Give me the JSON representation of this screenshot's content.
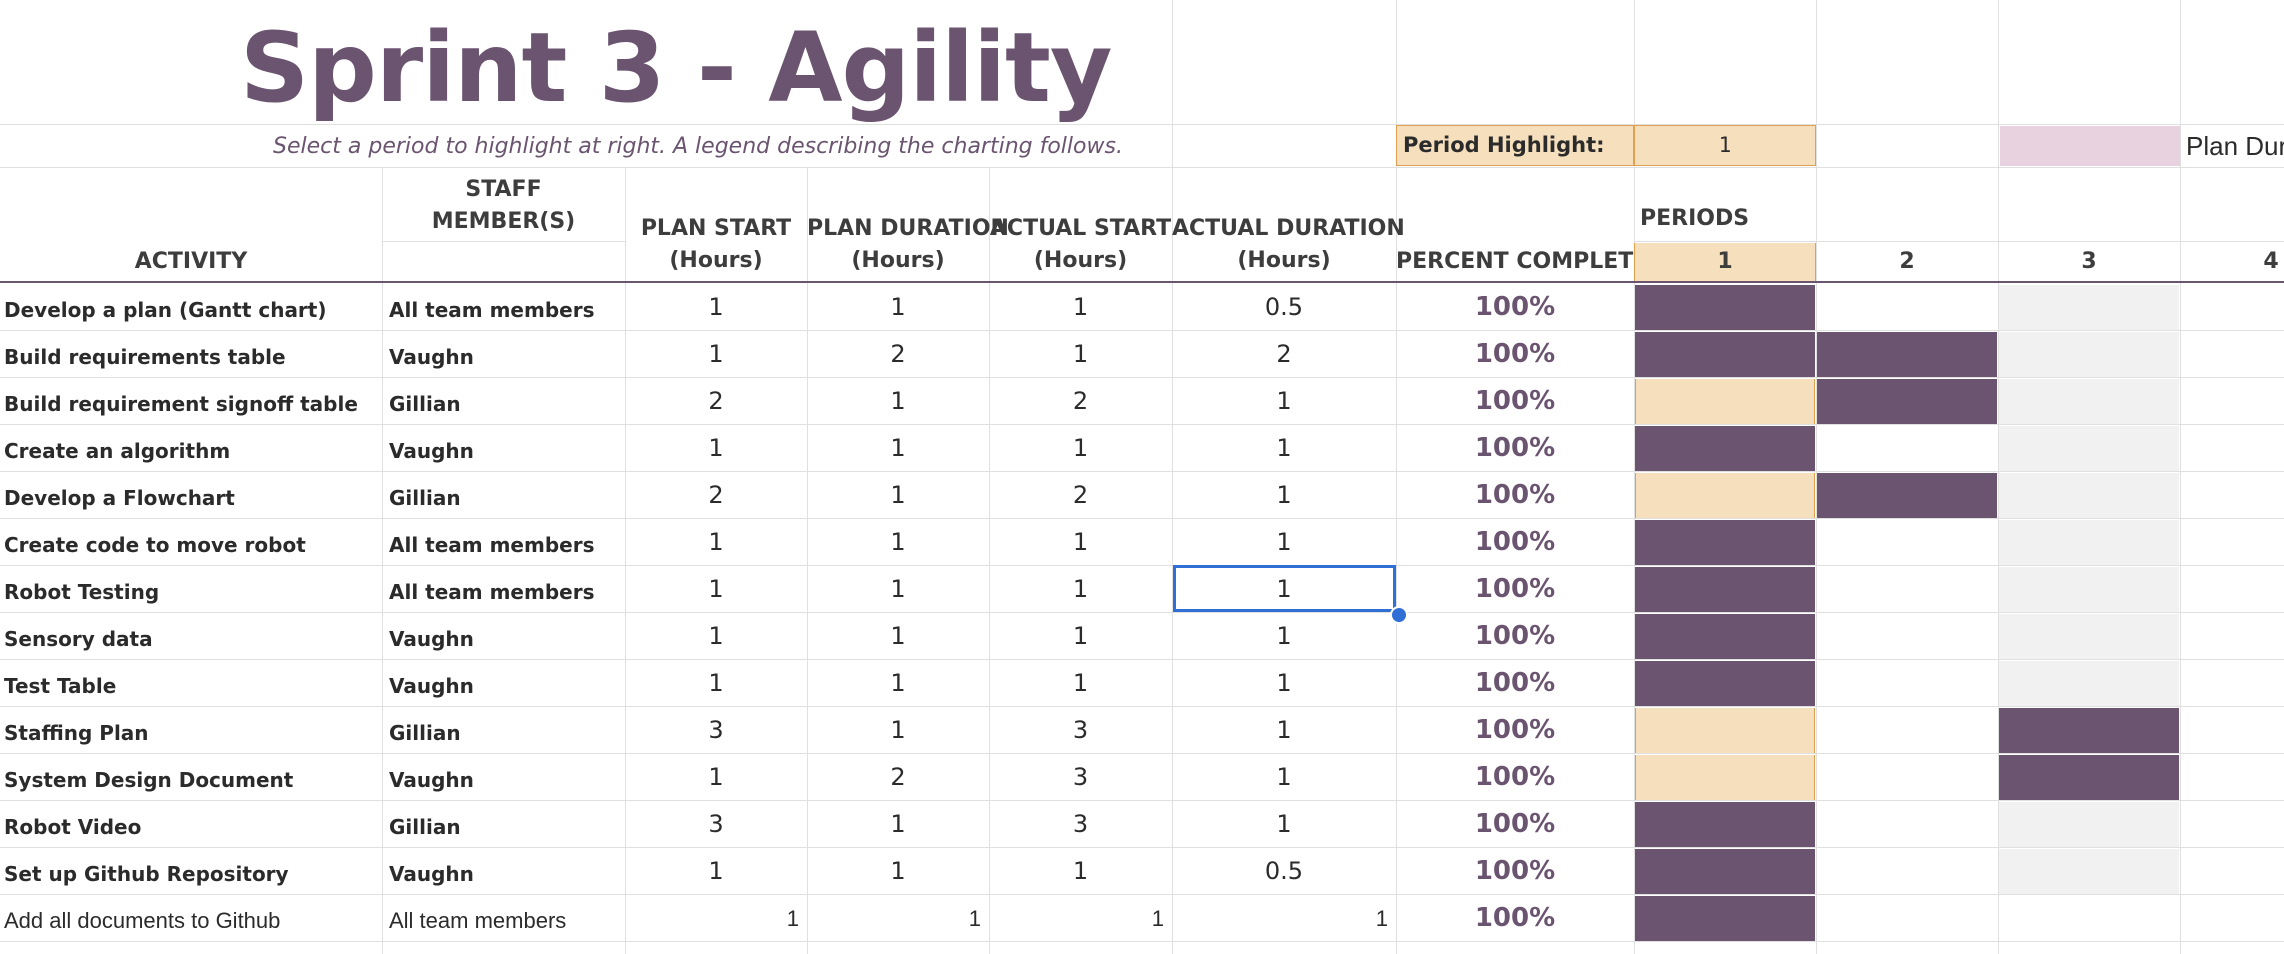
{
  "title": "Sprint 3 - Agility",
  "subtitle": "Select a period to highlight at right. A legend describing the charting follows.",
  "period_highlight": {
    "label": "Period Highlight:",
    "value": "1"
  },
  "legend": {
    "plan_label": "Plan Dur",
    "plan_color": "#e8d2df"
  },
  "colors": {
    "accent": "#6b5470",
    "highlight": "#f5dfbd",
    "selection": "#2f6fd6"
  },
  "headers": {
    "activity": "ACTIVITY",
    "staff_1": "STAFF",
    "staff_2": "MEMBER(S)",
    "plan_start_1": "PLAN START",
    "plan_start_2": "(Hours)",
    "plan_duration_1": "PLAN DURATION",
    "plan_duration_2": "(Hours)",
    "actual_start_1": "ACTUAL START",
    "actual_start_2": "(Hours)",
    "actual_duration_1": "ACTUAL DURATION",
    "actual_duration_2": "(Hours)",
    "percent_complete": "PERCENT COMPLETE",
    "periods": "PERIODS",
    "period_numbers": [
      "1",
      "2",
      "3",
      "4"
    ]
  },
  "rows": [
    {
      "activity": "Develop a plan (Gantt chart)",
      "staff": "All team members",
      "plan_start": "1",
      "plan_duration": "1",
      "actual_start": "1",
      "actual_duration": "0.5",
      "percent": "100%"
    },
    {
      "activity": "Build requirements table",
      "staff": "Vaughn",
      "plan_start": "1",
      "plan_duration": "2",
      "actual_start": "1",
      "actual_duration": "2",
      "percent": "100%"
    },
    {
      "activity": "Build requirement signoff table",
      "staff": "Gillian",
      "plan_start": "2",
      "plan_duration": "1",
      "actual_start": "2",
      "actual_duration": "1",
      "percent": "100%"
    },
    {
      "activity": "Create an algorithm",
      "staff": "Vaughn",
      "plan_start": "1",
      "plan_duration": "1",
      "actual_start": "1",
      "actual_duration": "1",
      "percent": "100%"
    },
    {
      "activity": "Develop a Flowchart",
      "staff": "Gillian",
      "plan_start": "2",
      "plan_duration": "1",
      "actual_start": "2",
      "actual_duration": "1",
      "percent": "100%"
    },
    {
      "activity": "Create code to move robot",
      "staff": "All team members",
      "plan_start": "1",
      "plan_duration": "1",
      "actual_start": "1",
      "actual_duration": "1",
      "percent": "100%"
    },
    {
      "activity": "Robot Testing",
      "staff": "All team members",
      "plan_start": "1",
      "plan_duration": "1",
      "actual_start": "1",
      "actual_duration": "1",
      "percent": "100%"
    },
    {
      "activity": "Sensory data",
      "staff": "Vaughn",
      "plan_start": "1",
      "plan_duration": "1",
      "actual_start": "1",
      "actual_duration": "1",
      "percent": "100%"
    },
    {
      "activity": "Test Table",
      "staff": "Vaughn",
      "plan_start": "1",
      "plan_duration": "1",
      "actual_start": "1",
      "actual_duration": "1",
      "percent": "100%"
    },
    {
      "activity": "Staffing Plan",
      "staff": "Gillian",
      "plan_start": "3",
      "plan_duration": "1",
      "actual_start": "3",
      "actual_duration": "1",
      "percent": "100%"
    },
    {
      "activity": "System Design Document",
      "staff": "Vaughn",
      "plan_start": "1",
      "plan_duration": "2",
      "actual_start": "3",
      "actual_duration": "1",
      "percent": "100%"
    },
    {
      "activity": "Robot Video",
      "staff": "Gillian",
      "plan_start": "3",
      "plan_duration": "1",
      "actual_start": "3",
      "actual_duration": "1",
      "percent": "100%"
    },
    {
      "activity": "Set up Github Repository",
      "staff": "Vaughn",
      "plan_start": "1",
      "plan_duration": "1",
      "actual_start": "1",
      "actual_duration": "0.5",
      "percent": "100%"
    },
    {
      "activity": "Add all documents to Github",
      "staff": "All team members",
      "plan_start": "1",
      "plan_duration": "1",
      "actual_start": "1",
      "actual_duration": "1",
      "percent": "100%"
    }
  ],
  "gantt": [
    [
      "actual",
      "",
      "p3",
      ""
    ],
    [
      "actual",
      "actual",
      "p3",
      ""
    ],
    [
      "hl",
      "actual",
      "p3",
      ""
    ],
    [
      "actual",
      "",
      "p3",
      ""
    ],
    [
      "hl",
      "actual",
      "p3",
      ""
    ],
    [
      "actual",
      "",
      "p3",
      ""
    ],
    [
      "actual",
      "",
      "p3",
      ""
    ],
    [
      "actual",
      "",
      "p3",
      ""
    ],
    [
      "actual",
      "",
      "p3",
      ""
    ],
    [
      "hl",
      "",
      "actual",
      ""
    ],
    [
      "hl",
      "",
      "actual",
      ""
    ],
    [
      "actual",
      "",
      "p3",
      ""
    ],
    [
      "actual",
      "",
      "p3",
      ""
    ],
    [
      "actual",
      "",
      "",
      ""
    ]
  ]
}
